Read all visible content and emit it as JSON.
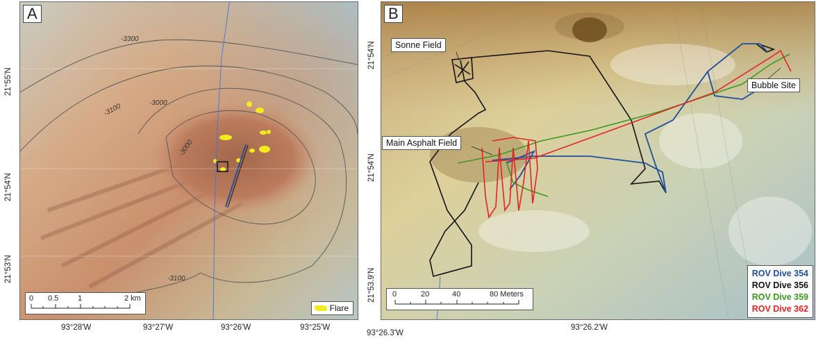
{
  "panel_a": {
    "label": "A",
    "x_ticks": [
      "93°28'W",
      "93°27'W",
      "93°26'W",
      "93°25'W"
    ],
    "y_ticks": [
      "21°55'N",
      "21°54'N",
      "21°53'N"
    ],
    "contour_labels": [
      "-3300",
      "-3100",
      "-3000",
      "-3000",
      "-3100"
    ],
    "scale_bar": {
      "labels": [
        "0",
        "0.5",
        "1",
        "2 km"
      ]
    },
    "legend": {
      "label": "Flare",
      "color": "#f2ec1c"
    }
  },
  "panel_b": {
    "label": "B",
    "x_ticks": [
      "93°26.3'W",
      "93°26.2'W"
    ],
    "y_ticks": [
      "21°54'N",
      "21°54'N",
      "21°53.9'N"
    ],
    "callouts": {
      "sonne": "Sonne Field",
      "main": "Main Asphalt Field",
      "bubble": "Bubble Site"
    },
    "scale_bar": {
      "labels": [
        "0",
        "20",
        "40",
        "80 Meters"
      ]
    },
    "legend": [
      {
        "label": "ROV Dive 354",
        "color": "#1f4e9c"
      },
      {
        "label": "ROV Dive 356",
        "color": "#111111"
      },
      {
        "label": "ROV Dive 359",
        "color": "#3a9a1f"
      },
      {
        "label": "ROV Dive 362",
        "color": "#e02424"
      }
    ]
  }
}
